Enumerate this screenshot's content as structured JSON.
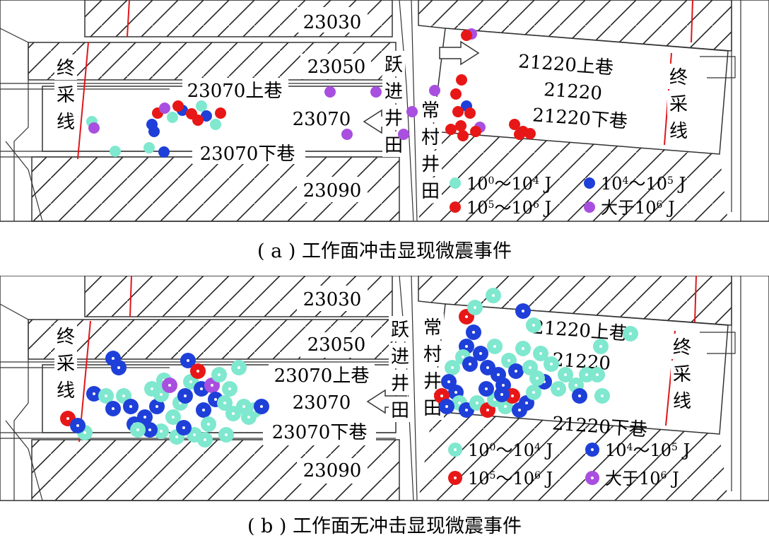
{
  "panel_a": {
    "labels": {
      "face_23030": "23030",
      "face_23050": "23050",
      "upper_23070": "23070上巷",
      "face_23070": "23070",
      "lower_23070": "23070下巷",
      "face_23090": "23090",
      "upper_21220": "21220上巷",
      "face_21220": "21220",
      "lower_21220": "21220下巷",
      "stop_line_left": "终采线",
      "stop_line_right": "终采线",
      "yuejin_field": "跃进井田",
      "changcun_field": "常村井田"
    },
    "legend": {
      "c1_base": "10",
      "c1_exp": "0",
      "c1_mid": "～10",
      "c1_exp2": "4",
      "c1_unit": " J",
      "c2_base": "10",
      "c2_exp": "4",
      "c2_mid": "～10",
      "c2_exp2": "5",
      "c2_unit": " J",
      "c3_base": "10",
      "c3_exp": "5",
      "c3_mid": "～10",
      "c3_exp2": "6",
      "c3_unit": " J",
      "c4_pre": "大于10",
      "c4_exp": "6",
      "c4_unit": " J"
    },
    "caption": "( a ) 工作面冲击显现微震事件"
  },
  "panel_b": {
    "labels": {
      "face_23030": "23030",
      "face_23050": "23050",
      "upper_23070": "23070上巷",
      "face_23070": "23070",
      "lower_23070": "23070下巷",
      "face_23090": "23090",
      "upper_21220": "21220上巷",
      "face_21220": "21220",
      "lower_21220": "21220下巷",
      "stop_line_left": "终采线",
      "stop_line_right": "终采线",
      "yuejin_field": "跃进井田",
      "changcun_field": "常村井田"
    },
    "legend": {
      "c1_base": "10",
      "c1_exp": "0",
      "c1_mid": "～10",
      "c1_exp2": "4",
      "c1_unit": " J",
      "c2_base": "10",
      "c2_exp": "4",
      "c2_mid": "～10",
      "c2_exp2": "5",
      "c2_unit": " J",
      "c3_base": "10",
      "c3_exp": "5",
      "c3_mid": "～10",
      "c3_exp2": "6",
      "c3_unit": " J",
      "c4_pre": "大于10",
      "c4_exp": "6",
      "c4_unit": " J"
    },
    "caption": "( b ) 工作面无冲击显现微震事件"
  },
  "colors": {
    "energy_low": "#7fe8cf",
    "energy_mid": "#1f3fd9",
    "energy_high": "#e81717",
    "energy_top": "#a94fe0",
    "stop_line": "#e0161a",
    "line": "#333333"
  }
}
